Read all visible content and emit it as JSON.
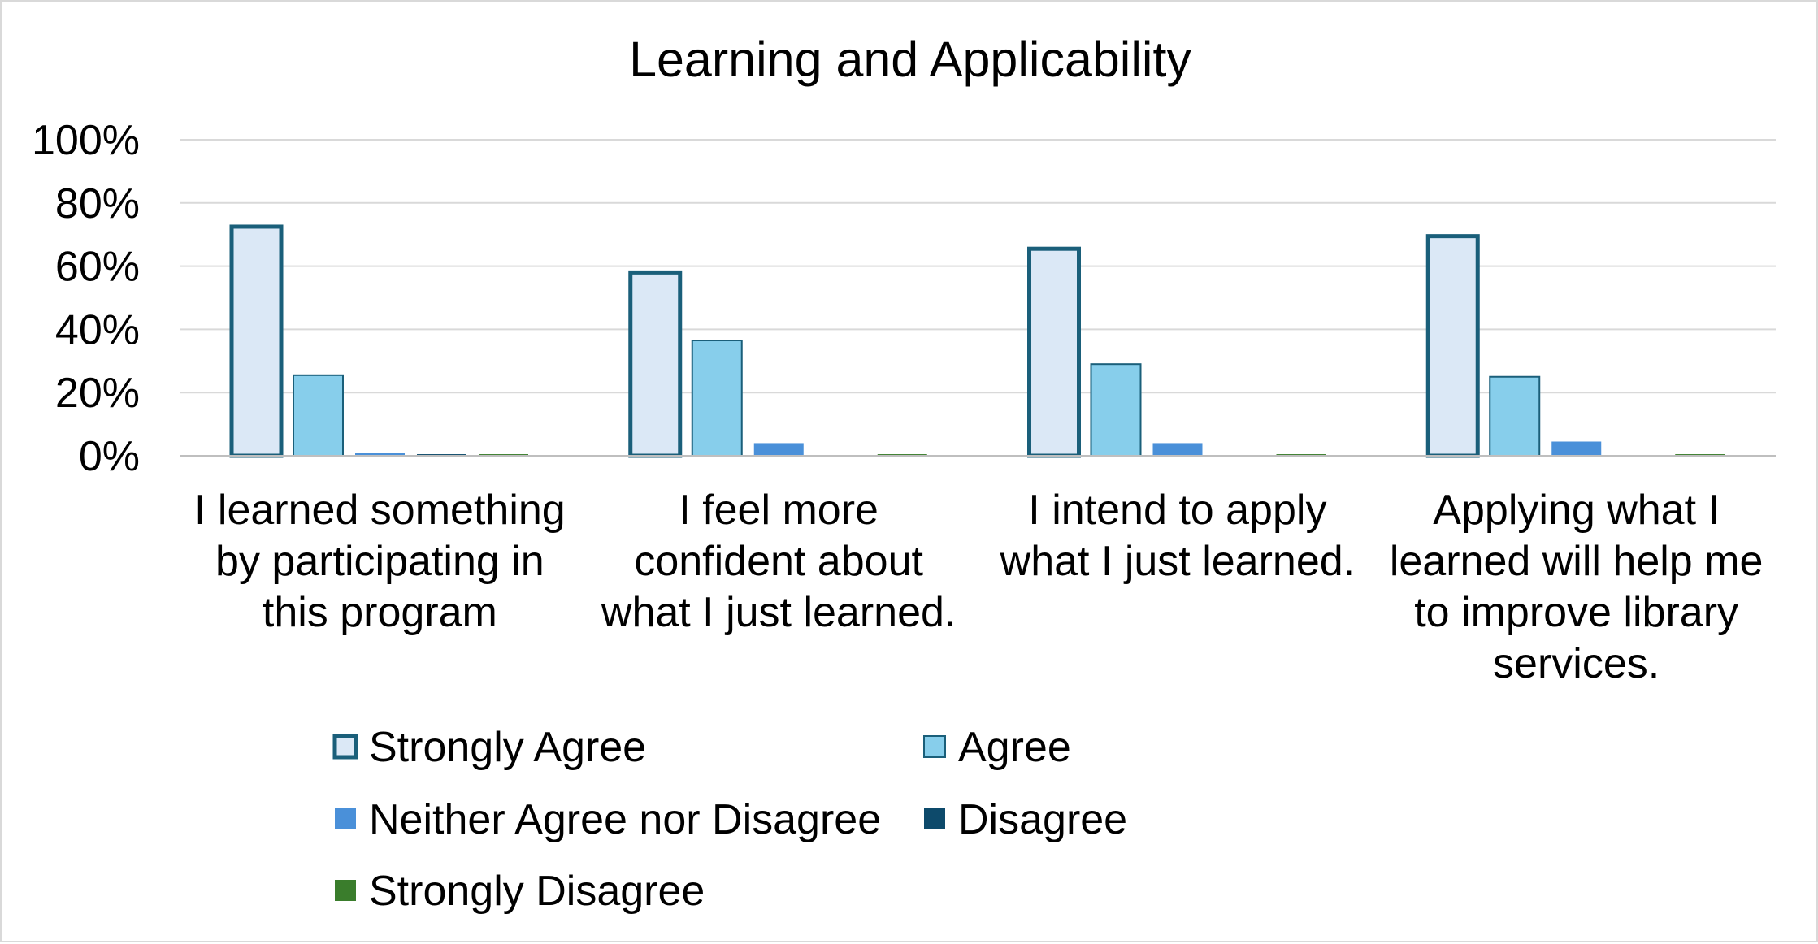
{
  "chart_data": {
    "type": "bar",
    "title": "Learning and Applicability",
    "xlabel": "",
    "ylabel": "",
    "ylim": [
      0,
      100
    ],
    "yticks": [
      "0%",
      "20%",
      "40%",
      "60%",
      "80%",
      "100%"
    ],
    "ytick_values": [
      0,
      20,
      40,
      60,
      80,
      100
    ],
    "grid": true,
    "legend_position": "bottom",
    "categories": [
      [
        "I learned something",
        "by participating in",
        "this program"
      ],
      [
        "I feel more",
        "confident about",
        "what I just learned."
      ],
      [
        "I intend to apply",
        "what I just learned."
      ],
      [
        "Applying what I",
        "learned will help me",
        "to improve library",
        "services."
      ]
    ],
    "series": [
      {
        "name": "Strongly Agree",
        "values": [
          72.5,
          58,
          65.5,
          69.5
        ],
        "color": "#dbe8f6",
        "stroke": "#1a5f7a"
      },
      {
        "name": "Agree",
        "values": [
          25.5,
          36.5,
          29,
          25
        ],
        "color": "#87ceeb",
        "stroke": "#1a5f7a"
      },
      {
        "name": "Neither Agree nor Disagree",
        "values": [
          1,
          4,
          4,
          4.5
        ],
        "color": "#4a90d9",
        "stroke": "none"
      },
      {
        "name": "Disagree",
        "values": [
          0.5,
          0,
          0,
          0
        ],
        "color": "#0d4a6b",
        "stroke": "none"
      },
      {
        "name": "Strongly Disagree",
        "values": [
          0.5,
          0.5,
          0.5,
          0.5
        ],
        "color": "#3a7d2c",
        "stroke": "none"
      }
    ]
  }
}
